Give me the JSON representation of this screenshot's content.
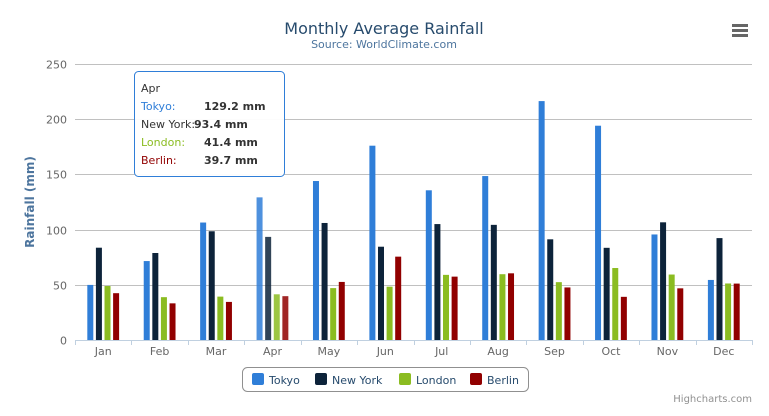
{
  "chart_data": {
    "type": "bar",
    "title": "Monthly Average Rainfall",
    "subtitle": "Source: WorldClimate.com",
    "xlabel": "",
    "ylabel": "Rainfall (mm)",
    "ylim": [
      0,
      250
    ],
    "yticks": [
      "0",
      "50",
      "100",
      "150",
      "200",
      "250"
    ],
    "grid": true,
    "legend_position": "bottom",
    "categories": [
      "Jan",
      "Feb",
      "Mar",
      "Apr",
      "May",
      "Jun",
      "Jul",
      "Aug",
      "Sep",
      "Oct",
      "Nov",
      "Dec"
    ],
    "series": [
      {
        "name": "Tokyo",
        "color": "#2f7ed8",
        "values": [
          49.9,
          71.5,
          106.4,
          129.2,
          144.0,
          176.0,
          135.6,
          148.5,
          216.4,
          194.1,
          95.6,
          54.4
        ]
      },
      {
        "name": "New York",
        "color": "#0d233a",
        "values": [
          83.6,
          78.8,
          98.5,
          93.4,
          106.0,
          84.5,
          105.0,
          104.3,
          91.2,
          83.5,
          106.6,
          92.3
        ]
      },
      {
        "name": "London",
        "color": "#8bbc21",
        "values": [
          48.9,
          38.8,
          39.3,
          41.4,
          47.0,
          48.3,
          59.0,
          59.6,
          52.4,
          65.2,
          59.3,
          51.2
        ]
      },
      {
        "name": "Berlin",
        "color": "#910000",
        "values": [
          42.4,
          33.2,
          34.5,
          39.7,
          52.6,
          75.5,
          57.4,
          60.4,
          47.6,
          39.1,
          46.8,
          51.1
        ]
      }
    ],
    "tooltip": {
      "header": "Apr",
      "rows": [
        {
          "name": "Tokyo:",
          "value": "129.2 mm"
        },
        {
          "name": "New York:",
          "value": "93.4 mm"
        },
        {
          "name": "London:",
          "value": "41.4 mm"
        },
        {
          "name": "Berlin:",
          "value": "39.7 mm"
        }
      ]
    }
  },
  "credits": "Highcharts.com",
  "menu_icon": "hamburger-menu-icon"
}
